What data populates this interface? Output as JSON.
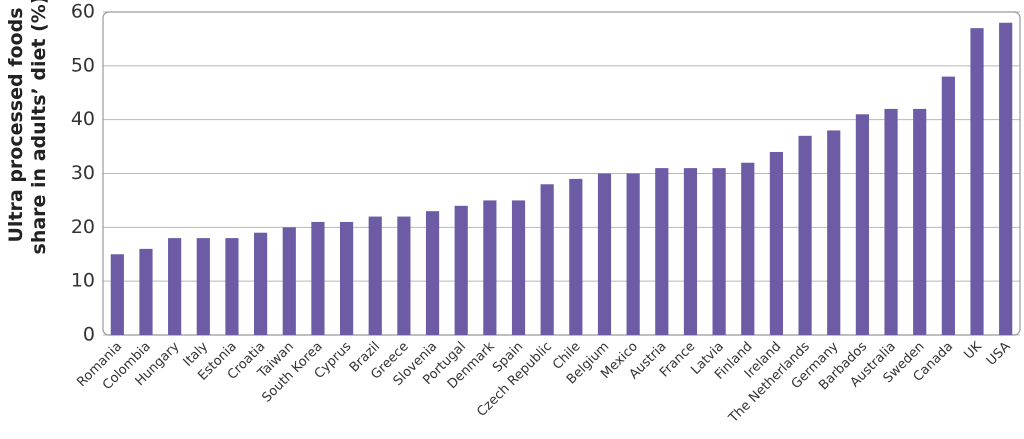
{
  "chart_data": {
    "type": "bar",
    "y_label": [
      "Ultra processed foods",
      "share in adults’ diet (%)"
    ],
    "categories": [
      "Romania",
      "Colombia",
      "Hungary",
      "Italy",
      "Estonia",
      "Croatia",
      "Taiwan",
      "South Korea",
      "Cyprus",
      "Brazil",
      "Greece",
      "Slovenia",
      "Portugal",
      "Denmark",
      "Spain",
      "Czech Republic",
      "Chile",
      "Belgium",
      "Mexico",
      "Austria",
      "France",
      "Latvia",
      "Finland",
      "Ireland",
      "The Netherlands",
      "Germany",
      "Barbados",
      "Australia",
      "Sweden",
      "Canada",
      "UK",
      "USA"
    ],
    "values": [
      15,
      16,
      18,
      18,
      18,
      19,
      20,
      21,
      21,
      22,
      22,
      23,
      24,
      25,
      25,
      28,
      29,
      30,
      30,
      31,
      31,
      31,
      32,
      34,
      37,
      38,
      41,
      42,
      42,
      48,
      57,
      58
    ],
    "color": "#6e5ba6",
    "ylim": [
      0,
      60
    ],
    "yticks": [
      0,
      10,
      20,
      30,
      40,
      50,
      60
    ],
    "grid": true
  }
}
